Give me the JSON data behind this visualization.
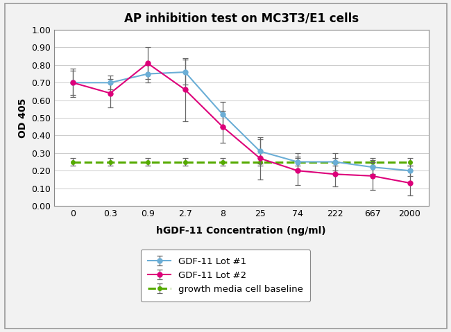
{
  "title": "AP inhibition test on MC3T3/E1 cells",
  "xlabel": "hGDF-11 Concentration (ng/ml)",
  "ylabel": "OD 405",
  "x_labels": [
    "0",
    "0.3",
    "0.9",
    "2.7",
    "8",
    "25",
    "74",
    "222",
    "667",
    "2000"
  ],
  "lot1_y": [
    0.7,
    0.7,
    0.75,
    0.76,
    0.52,
    0.31,
    0.25,
    0.25,
    0.22,
    0.2
  ],
  "lot1_err": [
    0.07,
    0.04,
    0.05,
    0.07,
    0.07,
    0.07,
    0.05,
    0.05,
    0.04,
    0.03
  ],
  "lot2_y": [
    0.7,
    0.64,
    0.81,
    0.66,
    0.45,
    0.27,
    0.2,
    0.18,
    0.17,
    0.13
  ],
  "lot2_err": [
    0.08,
    0.08,
    0.09,
    0.18,
    0.09,
    0.12,
    0.08,
    0.07,
    0.08,
    0.07
  ],
  "baseline_y": [
    0.25,
    0.25,
    0.25,
    0.25,
    0.25,
    0.25,
    0.25,
    0.25,
    0.25,
    0.25
  ],
  "baseline_err": [
    0.02,
    0.02,
    0.02,
    0.02,
    0.02,
    0.02,
    0.02,
    0.02,
    0.02,
    0.02
  ],
  "lot1_color": "#6baed6",
  "lot2_color": "#dd007a",
  "baseline_color": "#55aa00",
  "ylim": [
    0.0,
    1.0
  ],
  "yticks": [
    0.0,
    0.1,
    0.2,
    0.3,
    0.4,
    0.5,
    0.6,
    0.7,
    0.8,
    0.9,
    1.0
  ],
  "legend_labels": [
    "GDF-11 Lot #1",
    "GDF-11 Lot #2",
    "growth media cell baseline"
  ],
  "title_fontsize": 12,
  "axis_label_fontsize": 10,
  "tick_fontsize": 9,
  "legend_fontsize": 9.5,
  "background_color": "#f0f0f0",
  "plot_bg_color": "#ffffff",
  "grid_color": "#cccccc",
  "outer_border_color": "#aaaaaa"
}
